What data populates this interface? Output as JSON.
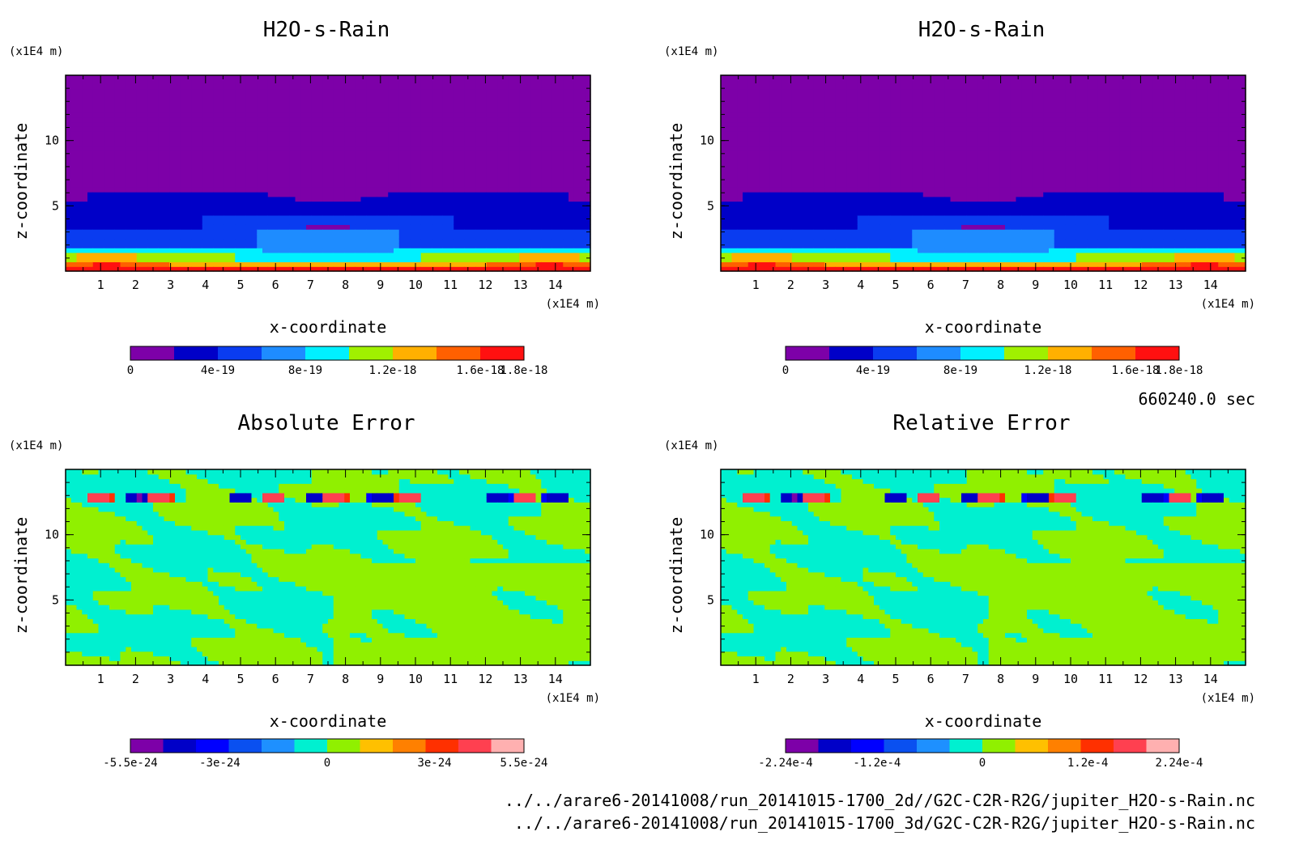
{
  "time_label": "660240.0 sec",
  "footer": {
    "file_2d": "../../arare6-20141008/run_20141015-1700_2d//G2C-C2R-R2G/jupiter_H2O-s-Rain.nc",
    "file_3d": "../../arare6-20141008/run_20141015-1700_3d/G2C-C2R-R2G/jupiter_H2O-s-Rain.nc"
  },
  "chart_data": [
    {
      "type": "heatmap",
      "title": "H2O-s-Rain",
      "xlabel": "x-coordinate",
      "ylabel": "z-coordinate",
      "x_unit": "(x1E4 m)",
      "y_unit": "(x1E4 m)",
      "xlim": [
        0,
        15
      ],
      "ylim": [
        0,
        15
      ],
      "x_ticks": [
        "1",
        "2",
        "3",
        "4",
        "5",
        "6",
        "7",
        "8",
        "9",
        "10",
        "11",
        "12",
        "13",
        "14"
      ],
      "y_ticks": [
        "5",
        "10"
      ],
      "field": "rain",
      "colorbar": {
        "range": [
          0,
          1.8e-18
        ],
        "colors": [
          "#7d00a8",
          "#0000c8",
          "#0a3cf0",
          "#1e8cff",
          "#00f0ff",
          "#a0f000",
          "#ffb000",
          "#ff6000",
          "#ff1010"
        ],
        "labels": [
          "0",
          "4e-19",
          "8e-19",
          "1.2e-18",
          "1.6e-18",
          "1.8e-18"
        ]
      }
    },
    {
      "type": "heatmap",
      "title": "H2O-s-Rain",
      "xlabel": "x-coordinate",
      "ylabel": "z-coordinate",
      "x_unit": "(x1E4 m)",
      "y_unit": "(x1E4 m)",
      "xlim": [
        0,
        15
      ],
      "ylim": [
        0,
        15
      ],
      "x_ticks": [
        "1",
        "2",
        "3",
        "4",
        "5",
        "6",
        "7",
        "8",
        "9",
        "10",
        "11",
        "12",
        "13",
        "14"
      ],
      "y_ticks": [
        "5",
        "10"
      ],
      "field": "rain",
      "colorbar": {
        "range": [
          0,
          1.8e-18
        ],
        "colors": [
          "#7d00a8",
          "#0000c8",
          "#0a3cf0",
          "#1e8cff",
          "#00f0ff",
          "#a0f000",
          "#ffb000",
          "#ff6000",
          "#ff1010"
        ],
        "labels": [
          "0",
          "4e-19",
          "8e-19",
          "1.2e-18",
          "1.6e-18",
          "1.8e-18"
        ]
      }
    },
    {
      "type": "heatmap",
      "title": "Absolute Error",
      "xlabel": "x-coordinate",
      "ylabel": "z-coordinate",
      "x_unit": "(x1E4 m)",
      "y_unit": "(x1E4 m)",
      "xlim": [
        0,
        15
      ],
      "ylim": [
        0,
        15
      ],
      "x_ticks": [
        "1",
        "2",
        "3",
        "4",
        "5",
        "6",
        "7",
        "8",
        "9",
        "10",
        "11",
        "12",
        "13",
        "14"
      ],
      "y_ticks": [
        "5",
        "10"
      ],
      "field": "error",
      "colorbar": {
        "range": [
          -5.5e-24,
          5.5e-24
        ],
        "colors": [
          "#7d00a8",
          "#0000c8",
          "#0000ff",
          "#0a50f0",
          "#1e90ff",
          "#00f0d0",
          "#90f000",
          "#ffc000",
          "#ff8000",
          "#ff3000",
          "#ff4050",
          "#ffb0b0"
        ],
        "labels": [
          "-5.5e-24",
          "-3e-24",
          "0",
          "3e-24",
          "5.5e-24"
        ]
      }
    },
    {
      "type": "heatmap",
      "title": "Relative Error",
      "xlabel": "x-coordinate",
      "ylabel": "z-coordinate",
      "x_unit": "(x1E4 m)",
      "y_unit": "(x1E4 m)",
      "xlim": [
        0,
        15
      ],
      "ylim": [
        0,
        15
      ],
      "x_ticks": [
        "1",
        "2",
        "3",
        "4",
        "5",
        "6",
        "7",
        "8",
        "9",
        "10",
        "11",
        "12",
        "13",
        "14"
      ],
      "y_ticks": [
        "5",
        "10"
      ],
      "field": "error",
      "colorbar": {
        "range": [
          -0.000224,
          0.000224
        ],
        "colors": [
          "#7d00a8",
          "#0000c8",
          "#0000ff",
          "#0a50f0",
          "#1e90ff",
          "#00f0d0",
          "#90f000",
          "#ffc000",
          "#ff8000",
          "#ff3000",
          "#ff4050",
          "#ffb0b0"
        ],
        "labels": [
          "-2.24e-4",
          "-1.2e-4",
          "0",
          "1.2e-4",
          "2.24e-4"
        ]
      }
    }
  ]
}
